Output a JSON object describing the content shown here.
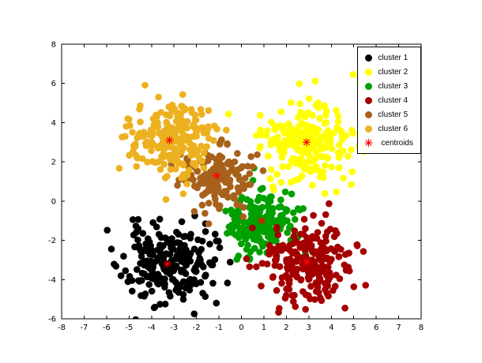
{
  "chart_data": {
    "type": "scatter",
    "title": "",
    "xlabel": "",
    "ylabel": "",
    "xlim": [
      -8,
      8
    ],
    "ylim": [
      -6,
      8
    ],
    "xticks": [
      -8,
      -7,
      -6,
      -5,
      -4,
      -3,
      -2,
      -1,
      0,
      1,
      2,
      3,
      4,
      5,
      6,
      7,
      8
    ],
    "yticks": [
      -6,
      -4,
      -2,
      0,
      2,
      4,
      6,
      8
    ],
    "grid": false,
    "legend": {
      "position": "top-right",
      "border_color": "#000000",
      "background": "#ffffff"
    },
    "series": [
      {
        "name": "cluster 1",
        "color": "#000000",
        "center": [
          -3.3,
          -3.2
        ],
        "std": 1.0,
        "count": 230
      },
      {
        "name": "cluster 2",
        "color": "#ffff00",
        "center": [
          2.9,
          3.0
        ],
        "std": 1.0,
        "count": 230
      },
      {
        "name": "cluster 3",
        "color": "#00a000",
        "center": [
          0.9,
          -1.0
        ],
        "std": 0.85,
        "count": 185
      },
      {
        "name": "cluster 4",
        "color": "#a40000",
        "center": [
          2.9,
          -3.1
        ],
        "std": 1.0,
        "count": 230
      },
      {
        "name": "cluster 5",
        "color": "#a8611a",
        "center": [
          -1.1,
          1.3
        ],
        "std": 0.75,
        "count": 160
      },
      {
        "name": "cluster 6",
        "color": "#edb120",
        "center": [
          -3.2,
          3.1
        ],
        "std": 1.0,
        "count": 230
      }
    ],
    "centroids": {
      "name": "centroids",
      "marker": "asterisk",
      "color": "#ff0000",
      "points": [
        [
          -3.3,
          -3.2
        ],
        [
          2.9,
          3.0
        ],
        [
          0.9,
          -1.0
        ],
        [
          2.9,
          -3.1
        ],
        [
          -1.1,
          1.3
        ],
        [
          -3.2,
          3.1
        ]
      ]
    }
  }
}
